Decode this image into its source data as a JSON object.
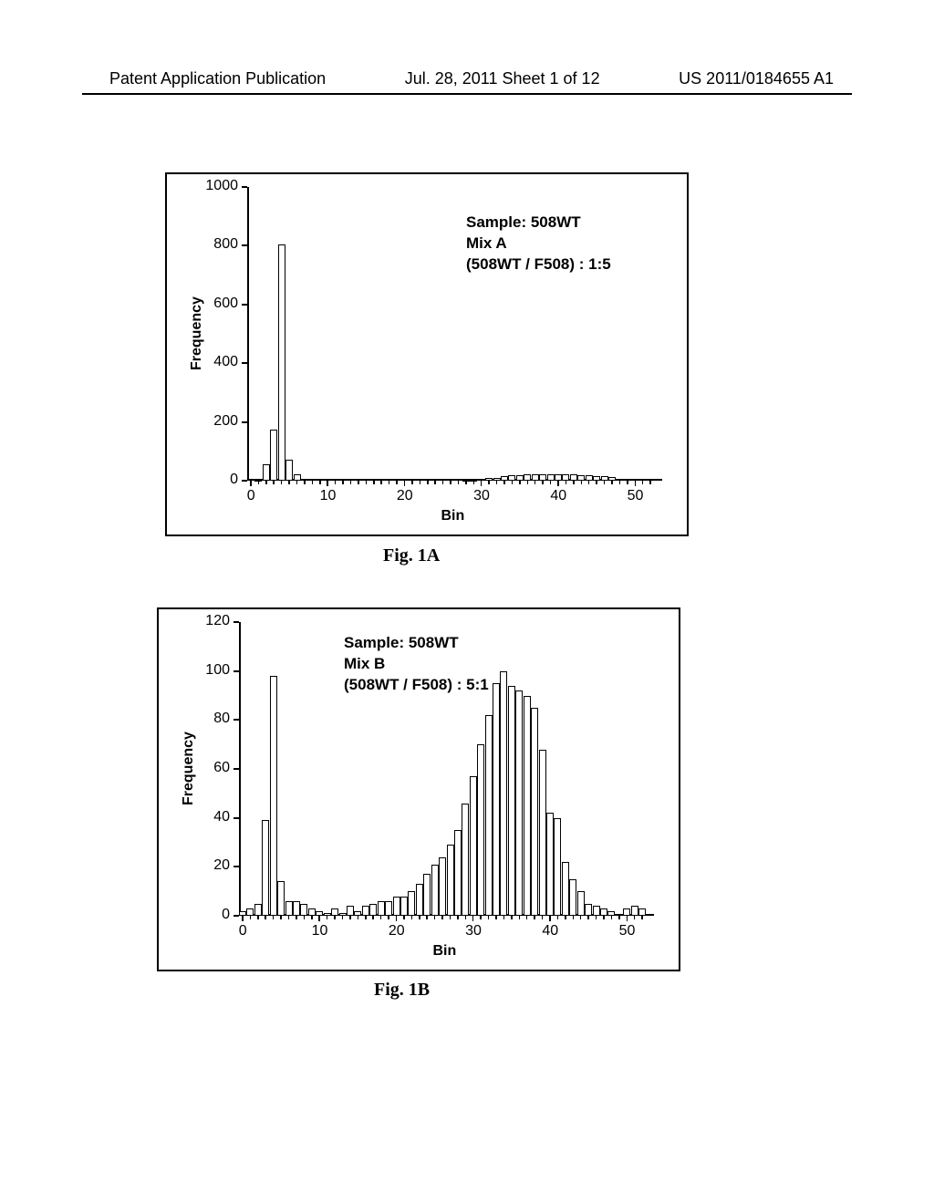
{
  "header": {
    "left": "Patent Application Publication",
    "mid": "Jul. 28, 2011  Sheet 1 of 12",
    "right": "US 2011/0184655 A1"
  },
  "figA": {
    "label": "Fig. 1A",
    "annot_line1": "Sample: 508WT",
    "annot_line2": "Mix A",
    "annot_line3": "(508WT / F508) : 1:5",
    "ylabel": "Frequency",
    "xlabel": "Bin",
    "ylim_max": 1000,
    "yticks": [
      0,
      200,
      400,
      600,
      800,
      1000
    ],
    "xticks": [
      0,
      10,
      20,
      30,
      40,
      50
    ],
    "bar_color": "#ffffff",
    "bar_border": "#000000",
    "bars": [
      {
        "x": 1,
        "y": 2
      },
      {
        "x": 2,
        "y": 55
      },
      {
        "x": 3,
        "y": 175
      },
      {
        "x": 4,
        "y": 805
      },
      {
        "x": 5,
        "y": 70
      },
      {
        "x": 6,
        "y": 22
      },
      {
        "x": 7,
        "y": 5
      },
      {
        "x": 28,
        "y": 2
      },
      {
        "x": 29,
        "y": 4
      },
      {
        "x": 30,
        "y": 6
      },
      {
        "x": 31,
        "y": 8
      },
      {
        "x": 32,
        "y": 10
      },
      {
        "x": 33,
        "y": 14
      },
      {
        "x": 34,
        "y": 18
      },
      {
        "x": 35,
        "y": 20
      },
      {
        "x": 36,
        "y": 22
      },
      {
        "x": 37,
        "y": 22
      },
      {
        "x": 38,
        "y": 22
      },
      {
        "x": 39,
        "y": 22
      },
      {
        "x": 40,
        "y": 22
      },
      {
        "x": 41,
        "y": 22
      },
      {
        "x": 42,
        "y": 22
      },
      {
        "x": 43,
        "y": 20
      },
      {
        "x": 44,
        "y": 18
      },
      {
        "x": 45,
        "y": 16
      },
      {
        "x": 46,
        "y": 14
      },
      {
        "x": 47,
        "y": 12
      }
    ]
  },
  "figB": {
    "label": "Fig. 1B",
    "annot_line1": "Sample: 508WT",
    "annot_line2": "Mix B",
    "annot_line3": "(508WT / F508) : 5:1",
    "ylabel": "Frequency",
    "xlabel": "Bin",
    "ylim_max": 120,
    "yticks": [
      0,
      20,
      40,
      60,
      80,
      100,
      120
    ],
    "xticks": [
      0,
      10,
      20,
      30,
      40,
      50
    ],
    "bar_color": "#ffffff",
    "bar_border": "#000000",
    "bars": [
      {
        "x": 0,
        "y": 2
      },
      {
        "x": 1,
        "y": 3
      },
      {
        "x": 2,
        "y": 5
      },
      {
        "x": 3,
        "y": 39
      },
      {
        "x": 4,
        "y": 98
      },
      {
        "x": 5,
        "y": 14
      },
      {
        "x": 6,
        "y": 6
      },
      {
        "x": 7,
        "y": 6
      },
      {
        "x": 8,
        "y": 5
      },
      {
        "x": 9,
        "y": 3
      },
      {
        "x": 10,
        "y": 2
      },
      {
        "x": 11,
        "y": 1
      },
      {
        "x": 12,
        "y": 3
      },
      {
        "x": 13,
        "y": 1
      },
      {
        "x": 14,
        "y": 4
      },
      {
        "x": 15,
        "y": 2
      },
      {
        "x": 16,
        "y": 4
      },
      {
        "x": 17,
        "y": 5
      },
      {
        "x": 18,
        "y": 6
      },
      {
        "x": 19,
        "y": 6
      },
      {
        "x": 20,
        "y": 8
      },
      {
        "x": 21,
        "y": 8
      },
      {
        "x": 22,
        "y": 10
      },
      {
        "x": 23,
        "y": 13
      },
      {
        "x": 24,
        "y": 17
      },
      {
        "x": 25,
        "y": 21
      },
      {
        "x": 26,
        "y": 24
      },
      {
        "x": 27,
        "y": 29
      },
      {
        "x": 28,
        "y": 35
      },
      {
        "x": 29,
        "y": 46
      },
      {
        "x": 30,
        "y": 57
      },
      {
        "x": 31,
        "y": 70
      },
      {
        "x": 32,
        "y": 82
      },
      {
        "x": 33,
        "y": 95
      },
      {
        "x": 34,
        "y": 100
      },
      {
        "x": 35,
        "y": 94
      },
      {
        "x": 36,
        "y": 92
      },
      {
        "x": 37,
        "y": 90
      },
      {
        "x": 38,
        "y": 85
      },
      {
        "x": 39,
        "y": 68
      },
      {
        "x": 40,
        "y": 42
      },
      {
        "x": 41,
        "y": 40
      },
      {
        "x": 42,
        "y": 22
      },
      {
        "x": 43,
        "y": 15
      },
      {
        "x": 44,
        "y": 10
      },
      {
        "x": 45,
        "y": 5
      },
      {
        "x": 46,
        "y": 4
      },
      {
        "x": 47,
        "y": 3
      },
      {
        "x": 48,
        "y": 2
      },
      {
        "x": 50,
        "y": 3
      },
      {
        "x": 51,
        "y": 4
      },
      {
        "x": 52,
        "y": 3
      }
    ]
  }
}
